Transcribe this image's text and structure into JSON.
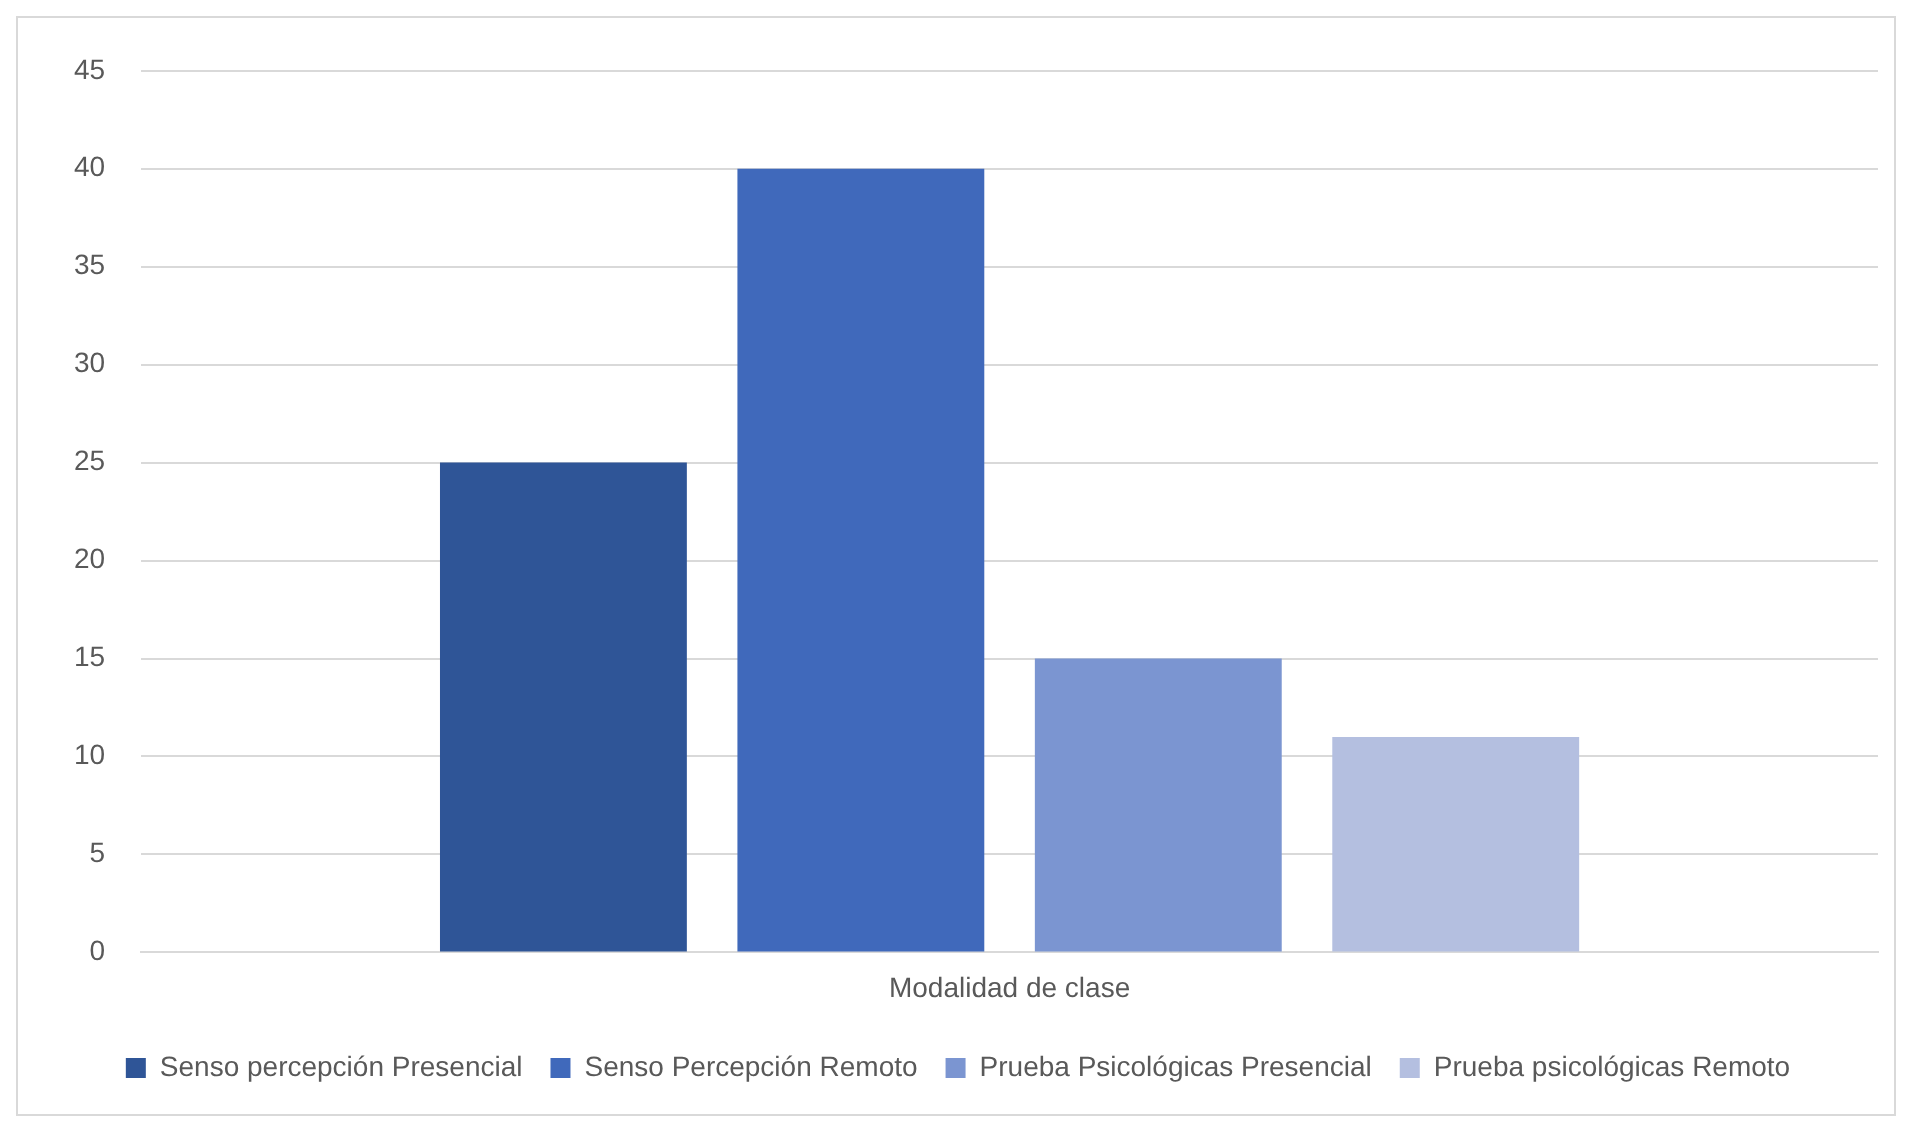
{
  "chart_data": {
    "type": "bar",
    "categories": [
      "Modalidad de clase"
    ],
    "series": [
      {
        "name": "Senso percepción Presencial",
        "color": "#2f5597",
        "values": [
          25
        ]
      },
      {
        "name": "Senso Percepción Remoto",
        "color": "#4069bb",
        "values": [
          40
        ]
      },
      {
        "name": "Prueba Psicológicas Presencial",
        "color": "#7b95d1",
        "values": [
          15
        ]
      },
      {
        "name": "Prueba psicológicas Remoto",
        "color": "#b4bfe0",
        "values": [
          11
        ]
      }
    ],
    "ylim": [
      0,
      45
    ],
    "yticks": [
      0,
      5,
      10,
      15,
      20,
      25,
      30,
      35,
      40,
      45
    ],
    "grid": "y",
    "legend": "bottom"
  }
}
